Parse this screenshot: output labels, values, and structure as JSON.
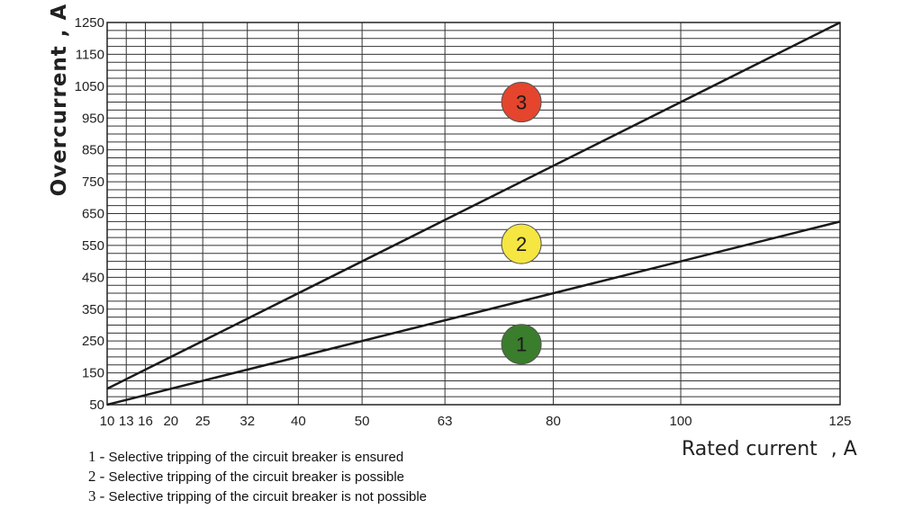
{
  "chart_data": {
    "type": "line",
    "xlabel_main": "Rated current",
    "xlabel_unit": ", A",
    "ylabel": "Overcurrent , A",
    "x_ticks": [
      10,
      13,
      16,
      20,
      25,
      32,
      40,
      50,
      63,
      80,
      100,
      125
    ],
    "y_ticks": [
      50,
      150,
      250,
      350,
      450,
      550,
      650,
      750,
      850,
      950,
      1050,
      1150,
      1250
    ],
    "xlim": [
      10,
      125
    ],
    "ylim": [
      50,
      1250
    ],
    "grid": true,
    "series": [
      {
        "x": [
          10,
          125
        ],
        "y": [
          100,
          1250
        ]
      },
      {
        "x": [
          10,
          125
        ],
        "y": [
          50,
          625
        ]
      }
    ],
    "zones": [
      {
        "label": "1",
        "x": 75,
        "y": 240,
        "color": "#3a7d2c",
        "text_color": "#1b1b1b"
      },
      {
        "label": "2",
        "x": 75,
        "y": 555,
        "color": "#f5e642",
        "text_color": "#1b1b1b"
      },
      {
        "label": "3",
        "x": 75,
        "y": 1000,
        "color": "#e4452c",
        "text_color": "#1b1b1b"
      }
    ]
  },
  "legend": [
    {
      "num": "1",
      "dash": "-",
      "text": "Selective tripping of the circuit breaker is ensured"
    },
    {
      "num": "2",
      "dash": "-",
      "text": "Selective tripping of the circuit breaker is possible"
    },
    {
      "num": "3",
      "dash": "-",
      "text": "Selective tripping of the circuit breaker is not possible"
    }
  ]
}
